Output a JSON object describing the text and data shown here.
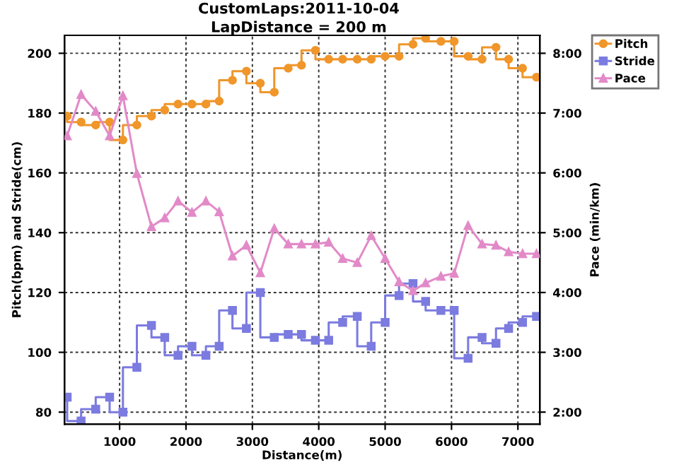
{
  "chart_data": {
    "type": "step",
    "title": "CustomLaps:2011-10-04",
    "subtitle": "LapDistance = 200 m",
    "xlabel": "Distance(m)",
    "ylabel": "Pitch(bpm) and Stride(cm)",
    "y2label": "Pace (min/km)",
    "x": [
      210,
      420,
      640,
      850,
      1050,
      1260,
      1480,
      1680,
      1880,
      2090,
      2300,
      2500,
      2700,
      2910,
      3120,
      3330,
      3540,
      3740,
      3950,
      4150,
      4360,
      4580,
      4790,
      5000,
      5210,
      5420,
      5610,
      5840,
      6040,
      6250,
      6460,
      6670,
      6860,
      7070,
      7280
    ],
    "series": [
      {
        "name": "Pitch",
        "color": "#f0962a",
        "marker": "circle",
        "values": [
          179,
          177,
          176,
          177,
          171,
          176,
          179,
          181,
          183,
          183,
          183,
          184,
          191,
          194,
          190,
          187,
          195,
          196,
          201,
          198,
          198,
          198,
          198,
          199,
          199,
          203,
          205,
          204,
          204,
          199,
          198,
          202,
          198,
          195,
          192
        ]
      },
      {
        "name": "Stride",
        "color": "#7b7be0",
        "marker": "square",
        "values": [
          85,
          77,
          81,
          85,
          80,
          95,
          109,
          105,
          99,
          102,
          99,
          102,
          114,
          108,
          120,
          105,
          106,
          106,
          104,
          104,
          110,
          112,
          102,
          110,
          119,
          123,
          117,
          114,
          114,
          98,
          105,
          103,
          108,
          110,
          112
        ]
      },
      {
        "name": "Pace",
        "type": "line",
        "axis": "y2",
        "color": "#e28ac8",
        "marker": "triangle",
        "values": [
          6.62,
          7.31,
          7.03,
          6.62,
          7.29,
          5.99,
          5.1,
          5.25,
          5.53,
          5.34,
          5.53,
          5.35,
          4.61,
          4.79,
          4.33,
          5.07,
          4.81,
          4.81,
          4.81,
          4.84,
          4.57,
          4.5,
          4.95,
          4.57,
          4.18,
          4.03,
          4.16,
          4.27,
          4.32,
          5.12,
          4.81,
          4.79,
          4.68,
          4.65,
          4.65
        ]
      }
    ],
    "xlim": [
      170,
      7330
    ],
    "xticks": [
      1000,
      2000,
      3000,
      4000,
      5000,
      6000,
      7000
    ],
    "ylim": [
      76,
      206
    ],
    "yticks": [
      80,
      100,
      120,
      140,
      160,
      180,
      200
    ],
    "y2lim": [
      1.8,
      8.3
    ],
    "y2ticks": [
      {
        "value": 2,
        "label": "2:00"
      },
      {
        "value": 3,
        "label": "3:00"
      },
      {
        "value": 4,
        "label": "4:00"
      },
      {
        "value": 5,
        "label": "5:00"
      },
      {
        "value": 6,
        "label": "6:00"
      },
      {
        "value": 7,
        "label": "7:00"
      },
      {
        "value": 8,
        "label": "8:00"
      }
    ],
    "grid": true,
    "legend": "top right",
    "line_style": "solid"
  }
}
